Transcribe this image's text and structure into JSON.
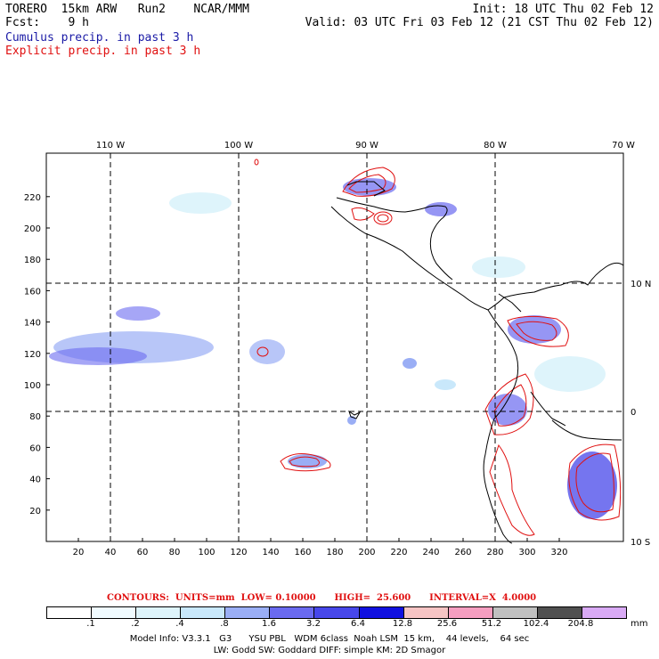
{
  "header": {
    "model": "TORERO  15km ARW   Run2    NCAR/MMM",
    "init": "Init: 18 UTC Thu 02 Feb 12",
    "fcst": "Fcst:    9 h",
    "valid": "Valid: 03 UTC Fri 03 Feb 12 (21 CST Thu 02 Feb 12)",
    "field1": "Cumulus precip. in past 3 h",
    "field2": "Explicit precip. in past 3 h"
  },
  "colors": {
    "field1": "#1a1aa6",
    "field2": "#e01010",
    "contour": "#e01010",
    "grid": "#000000"
  },
  "axes": {
    "lon_labels": [
      "110 W",
      "100 W",
      "90 W",
      "80 W",
      "70 W"
    ],
    "lat_labels": [
      "10 N",
      "0",
      "10 S"
    ],
    "x_ticks": [
      "20",
      "40",
      "60",
      "80",
      "100",
      "120",
      "140",
      "160",
      "180",
      "200",
      "220",
      "240",
      "260",
      "280",
      "300",
      "320"
    ],
    "y_ticks": [
      "20",
      "40",
      "60",
      "80",
      "100",
      "120",
      "140",
      "160",
      "180",
      "200",
      "220"
    ]
  },
  "contours": {
    "label": "CONTOURS:  UNITS=mm  LOW= 0.10000      HIGH=  25.600      INTERVAL=X  4.0000"
  },
  "colorbar": {
    "colors": [
      "#ffffff",
      "#f0fbff",
      "#def4fb",
      "#c9e8fb",
      "#9aaef5",
      "#6a6af0",
      "#4747ea",
      "#1010e0",
      "#f6c4c4",
      "#f59ec0",
      "#c0c0c0",
      "#505050",
      "#d9aaf5"
    ],
    "labels": [
      ".1",
      ".2",
      ".4",
      ".8",
      "1.6",
      "3.2",
      "6.4",
      "12.8",
      "25.6",
      "51.2",
      "102.4",
      "204.8"
    ],
    "unit": "mm"
  },
  "footer": {
    "line1": "Model Info: V3.3.1   G3      YSU PBL   WDM 6class  Noah LSM  15 km,    44 levels,    64 sec",
    "line2": "LW: Godd SW: Goddard DIFF: simple KM: 2D Smagor"
  }
}
